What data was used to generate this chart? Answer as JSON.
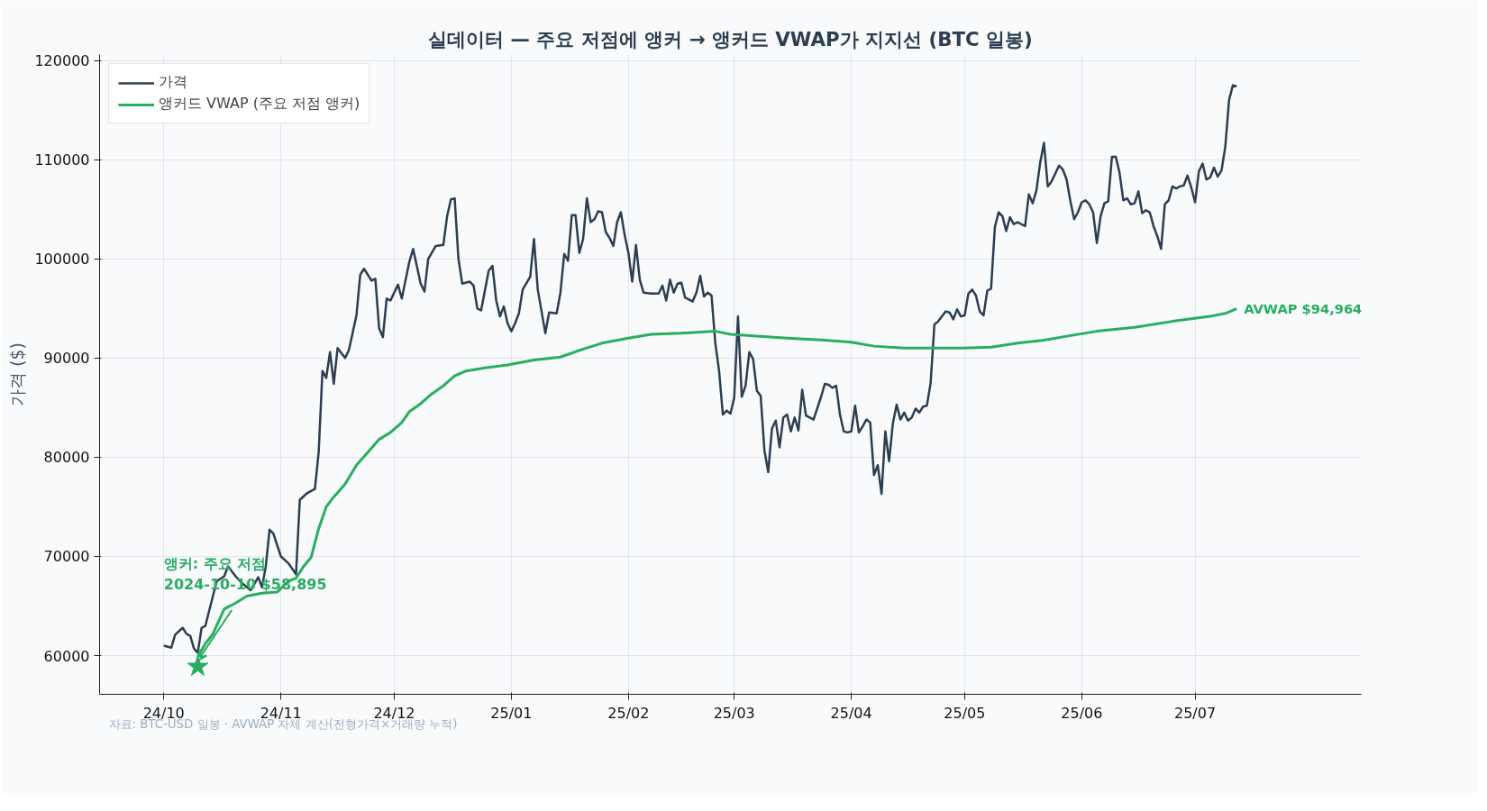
{
  "chart_data": {
    "type": "line",
    "title": "실데이터 — 주요 저점에 앵커 → 앵커드 VWAP가 지지선 (BTC 일봉)",
    "ylabel": "가격 ($)",
    "annotations": [
      {
        "text": "앵커: 주요 저점\n2024-10-10 $58,895",
        "x": "2024-10-10",
        "y": 58895
      },
      {
        "text": "AVWAP $94,964",
        "x": "2025-07-12",
        "y": 94964
      },
      "자료: BTC-USD 일봉 · AVWAP 자체 계산(전형가격×거래량 누적)"
    ],
    "xlim": [
      "2024-09-14",
      "2025-08-14"
    ],
    "ylim": [
      56100,
      120600
    ],
    "xticks": [
      {
        "value": "2024-10-01",
        "label": "24/10"
      },
      {
        "value": "2024-11-01",
        "label": "24/11"
      },
      {
        "value": "2024-12-01",
        "label": "24/12"
      },
      {
        "value": "2025-01-01",
        "label": "25/01"
      },
      {
        "value": "2025-02-01",
        "label": "25/02"
      },
      {
        "value": "2025-03-01",
        "label": "25/03"
      },
      {
        "value": "2025-04-01",
        "label": "25/04"
      },
      {
        "value": "2025-05-01",
        "label": "25/05"
      },
      {
        "value": "2025-06-01",
        "label": "25/06"
      },
      {
        "value": "2025-07-01",
        "label": "25/07"
      }
    ],
    "yticks": [
      60000,
      70000,
      80000,
      90000,
      100000,
      110000,
      120000
    ],
    "grid": true,
    "legend": "top left",
    "line_style": "solid",
    "series": [
      {
        "name": "가격",
        "color": "#2c3e50",
        "x": [
          "2024-10-01",
          "2024-10-03",
          "2024-10-04",
          "2024-10-06",
          "2024-10-07",
          "2024-10-08",
          "2024-10-09",
          "2024-10-10",
          "2024-10-11",
          "2024-10-12",
          "2024-10-14",
          "2024-10-15",
          "2024-10-17",
          "2024-10-18",
          "2024-10-20",
          "2024-10-22",
          "2024-10-24",
          "2024-10-26",
          "2024-10-27",
          "2024-10-28",
          "2024-10-29",
          "2024-10-30",
          "2024-11-01",
          "2024-11-03",
          "2024-11-05",
          "2024-11-06",
          "2024-11-08",
          "2024-11-10",
          "2024-11-11",
          "2024-11-12",
          "2024-11-13",
          "2024-11-14",
          "2024-11-15",
          "2024-11-16",
          "2024-11-18",
          "2024-11-19",
          "2024-11-21",
          "2024-11-22",
          "2024-11-23",
          "2024-11-25",
          "2024-11-26",
          "2024-11-27",
          "2024-11-28",
          "2024-11-29",
          "2024-11-30",
          "2024-12-02",
          "2024-12-03",
          "2024-12-05",
          "2024-12-06",
          "2024-12-08",
          "2024-12-09",
          "2024-12-10",
          "2024-12-12",
          "2024-12-14",
          "2024-12-15",
          "2024-12-16",
          "2024-12-17",
          "2024-12-18",
          "2024-12-19",
          "2024-12-21",
          "2024-12-22",
          "2024-12-23",
          "2024-12-24",
          "2024-12-26",
          "2024-12-27",
          "2024-12-28",
          "2024-12-29",
          "2024-12-30",
          "2024-12-31",
          "2025-01-01",
          "2025-01-02",
          "2025-01-03",
          "2025-01-04",
          "2025-01-06",
          "2025-01-07",
          "2025-01-08",
          "2025-01-09",
          "2025-01-10",
          "2025-01-11",
          "2025-01-13",
          "2025-01-14",
          "2025-01-15",
          "2025-01-16",
          "2025-01-17",
          "2025-01-18",
          "2025-01-19",
          "2025-01-20",
          "2025-01-21",
          "2025-01-22",
          "2025-01-23",
          "2025-01-24",
          "2025-01-25",
          "2025-01-26",
          "2025-01-27",
          "2025-01-28",
          "2025-01-29",
          "2025-01-30",
          "2025-01-31",
          "2025-02-01",
          "2025-02-02",
          "2025-02-03",
          "2025-02-04",
          "2025-02-05",
          "2025-02-07",
          "2025-02-09",
          "2025-02-10",
          "2025-02-11",
          "2025-02-12",
          "2025-02-13",
          "2025-02-14",
          "2025-02-15",
          "2025-02-16",
          "2025-02-18",
          "2025-02-19",
          "2025-02-20",
          "2025-02-21",
          "2025-02-22",
          "2025-02-23",
          "2025-02-24",
          "2025-02-25",
          "2025-02-26",
          "2025-02-27",
          "2025-02-28",
          "2025-03-01",
          "2025-03-02",
          "2025-03-03",
          "2025-03-04",
          "2025-03-05",
          "2025-03-06",
          "2025-03-07",
          "2025-03-08",
          "2025-03-09",
          "2025-03-10",
          "2025-03-11",
          "2025-03-12",
          "2025-03-13",
          "2025-03-14",
          "2025-03-15",
          "2025-03-16",
          "2025-03-17",
          "2025-03-18",
          "2025-03-19",
          "2025-03-20",
          "2025-03-22",
          "2025-03-24",
          "2025-03-25",
          "2025-03-26",
          "2025-03-27",
          "2025-03-28",
          "2025-03-29",
          "2025-03-30",
          "2025-03-31",
          "2025-04-01",
          "2025-04-02",
          "2025-04-03",
          "2025-04-04",
          "2025-04-05",
          "2025-04-06",
          "2025-04-07",
          "2025-04-08",
          "2025-04-09",
          "2025-04-10",
          "2025-04-11",
          "2025-04-12",
          "2025-04-13",
          "2025-04-14",
          "2025-04-15",
          "2025-04-16",
          "2025-04-17",
          "2025-04-18",
          "2025-04-19",
          "2025-04-20",
          "2025-04-21",
          "2025-04-22",
          "2025-04-23",
          "2025-04-24",
          "2025-04-26",
          "2025-04-27",
          "2025-04-28",
          "2025-04-29",
          "2025-04-30",
          "2025-05-01",
          "2025-05-02",
          "2025-05-03",
          "2025-05-04",
          "2025-05-05",
          "2025-05-06",
          "2025-05-07",
          "2025-05-08",
          "2025-05-09",
          "2025-05-10",
          "2025-05-11",
          "2025-05-12",
          "2025-05-13",
          "2025-05-14",
          "2025-05-15",
          "2025-05-16",
          "2025-05-17",
          "2025-05-18",
          "2025-05-19",
          "2025-05-20",
          "2025-05-21",
          "2025-05-22",
          "2025-05-23",
          "2025-05-24",
          "2025-05-26",
          "2025-05-27",
          "2025-05-28",
          "2025-05-29",
          "2025-05-30",
          "2025-05-31",
          "2025-06-01",
          "2025-06-02",
          "2025-06-03",
          "2025-06-04",
          "2025-06-05",
          "2025-06-06",
          "2025-06-07",
          "2025-06-08",
          "2025-06-09",
          "2025-06-10",
          "2025-06-11",
          "2025-06-12",
          "2025-06-13",
          "2025-06-14",
          "2025-06-15",
          "2025-06-16",
          "2025-06-17",
          "2025-06-18",
          "2025-06-19",
          "2025-06-20",
          "2025-06-21",
          "2025-06-22",
          "2025-06-23",
          "2025-06-24",
          "2025-06-25",
          "2025-06-26",
          "2025-06-27",
          "2025-06-28",
          "2025-06-29",
          "2025-06-30",
          "2025-07-01",
          "2025-07-02",
          "2025-07-03",
          "2025-07-04",
          "2025-07-05",
          "2025-07-06",
          "2025-07-07",
          "2025-07-08",
          "2025-07-09",
          "2025-07-10",
          "2025-07-11",
          "2025-07-12"
        ],
        "values": [
          61000,
          60800,
          62100,
          62800,
          62200,
          62000,
          60700,
          60300,
          62800,
          63000,
          66000,
          67500,
          68000,
          69000,
          68000,
          67200,
          66600,
          67900,
          66900,
          69000,
          72700,
          72300,
          70000,
          69300,
          68200,
          75700,
          76400,
          76800,
          80500,
          88700,
          88000,
          90600,
          87400,
          91000,
          90000,
          90800,
          94300,
          98400,
          99000,
          97800,
          98000,
          93000,
          92100,
          96000,
          95800,
          97400,
          96000,
          99700,
          101000,
          97500,
          96700,
          100000,
          101300,
          101400,
          104300,
          106000,
          106100,
          100000,
          97500,
          97700,
          97300,
          95000,
          94800,
          98800,
          99300,
          95800,
          94200,
          95200,
          93500,
          92700,
          93500,
          94500,
          96900,
          98200,
          102000,
          96900,
          94700,
          92500,
          94600,
          94500,
          96600,
          100500,
          99800,
          104400,
          104400,
          100600,
          102000,
          106100,
          103700,
          104000,
          104800,
          104700,
          102700,
          102100,
          101300,
          103700,
          104700,
          102400,
          100600,
          97700,
          101400,
          97900,
          96600,
          96500,
          96500,
          97300,
          95800,
          97900,
          96600,
          97500,
          97600,
          96100,
          95700,
          96600,
          98300,
          96200,
          96600,
          96300,
          91500,
          88700,
          84300,
          84700,
          84400,
          86000,
          94200,
          86100,
          87200,
          90600,
          89900,
          86700,
          86200,
          80700,
          78500,
          82900,
          83700,
          81000,
          84000,
          84300,
          82600,
          84000,
          82700,
          86800,
          84200,
          83800,
          86100,
          87400,
          87300,
          87000,
          87200,
          84300,
          82600,
          82500,
          82600,
          85200,
          82500,
          83100,
          83800,
          83500,
          78200,
          79200,
          76300,
          82600,
          79600,
          83400,
          85300,
          83800,
          84500,
          83700,
          84000,
          84900,
          84500,
          85100,
          85200,
          87500,
          93400,
          93700,
          94700,
          94600,
          93900,
          94900,
          94200,
          94300,
          96500,
          96900,
          96300,
          94700,
          94300,
          96800,
          97000,
          103200,
          104700,
          104300,
          102800,
          104200,
          103500,
          103700,
          103500,
          103300,
          106500,
          105600,
          106900,
          109700,
          111700,
          107300,
          107800,
          109400,
          109000,
          108000,
          105800,
          104000,
          104700,
          105700,
          105900,
          105500,
          104700,
          101600,
          104300,
          105600,
          105800,
          110300,
          110300,
          108700,
          105900,
          106100,
          105500,
          105600,
          106800,
          104600,
          104900,
          104700,
          103300,
          102300,
          101000,
          105500,
          105900,
          107300,
          107100,
          107300,
          107400,
          108400,
          107200,
          105700,
          108800,
          109600,
          108000,
          108200,
          109200,
          108300,
          108900,
          111300,
          116000,
          117500,
          117400
        ]
      },
      {
        "name": "앵커드 VWAP (주요 저점 앵커)",
        "color": "#27ae60",
        "x": [
          "2024-10-10",
          "2024-10-12",
          "2024-10-14",
          "2024-10-17",
          "2024-10-20",
          "2024-10-23",
          "2024-10-27",
          "2024-10-31",
          "2024-11-03",
          "2024-11-05",
          "2024-11-07",
          "2024-11-09",
          "2024-11-11",
          "2024-11-13",
          "2024-11-15",
          "2024-11-18",
          "2024-11-21",
          "2024-11-24",
          "2024-11-27",
          "2024-11-30",
          "2024-12-03",
          "2024-12-05",
          "2024-12-08",
          "2024-12-11",
          "2024-12-14",
          "2024-12-17",
          "2024-12-20",
          "2024-12-25",
          "2024-12-31",
          "2025-01-07",
          "2025-01-14",
          "2025-01-20",
          "2025-01-25",
          "2025-02-01",
          "2025-02-07",
          "2025-02-15",
          "2025-02-24",
          "2025-02-28",
          "2025-03-07",
          "2025-03-15",
          "2025-03-25",
          "2025-04-01",
          "2025-04-07",
          "2025-04-15",
          "2025-04-23",
          "2025-05-01",
          "2025-05-08",
          "2025-05-15",
          "2025-05-22",
          "2025-05-28",
          "2025-06-05",
          "2025-06-15",
          "2025-06-25",
          "2025-07-05",
          "2025-07-09",
          "2025-07-12"
        ],
        "values": [
          59900,
          61200,
          62200,
          64700,
          65300,
          66000,
          66300,
          66400,
          67500,
          67800,
          69000,
          69900,
          72800,
          75000,
          76000,
          77300,
          79200,
          80500,
          81800,
          82500,
          83500,
          84600,
          85400,
          86400,
          87200,
          88200,
          88700,
          89000,
          89300,
          89800,
          90100,
          90900,
          91500,
          92000,
          92400,
          92500,
          92700,
          92400,
          92200,
          92000,
          91800,
          91600,
          91200,
          91000,
          91000,
          91000,
          91100,
          91500,
          91800,
          92200,
          92700,
          93100,
          93700,
          94200,
          94500,
          94964
        ]
      },
      {
        "type": "scatter",
        "marker": "star",
        "color": "#27ae60",
        "x": [
          "2024-10-10"
        ],
        "values": [
          58895
        ]
      }
    ]
  }
}
